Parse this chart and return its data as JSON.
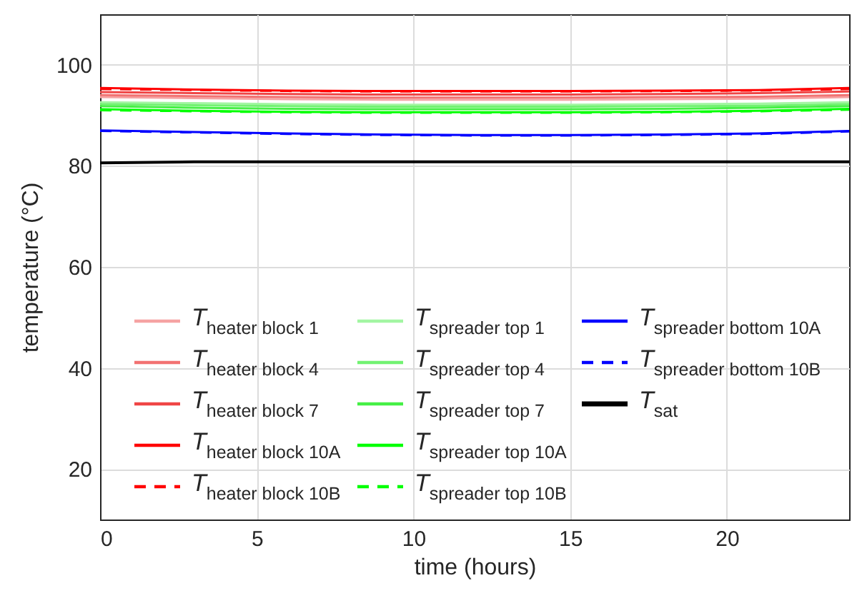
{
  "chart_data": {
    "type": "line",
    "xlabel": "time (hours)",
    "ylabel": "temperature (°C)",
    "xlim": [
      0,
      23.9
    ],
    "ylim": [
      10,
      110
    ],
    "xticks": [
      0,
      5,
      10,
      15,
      20
    ],
    "yticks": [
      20,
      40,
      60,
      80,
      100
    ],
    "grid": true,
    "legend": "bottom left",
    "x": [
      0,
      3,
      6,
      9,
      12,
      15,
      18,
      21,
      23.9
    ],
    "series": [
      {
        "name": "T$_{heater block 1}$",
        "color": "#f5a3a3",
        "line_style": "solid",
        "values": [
          93.6,
          93.4,
          93.2,
          93.1,
          93.1,
          93.1,
          93.2,
          93.3,
          93.6
        ]
      },
      {
        "name": "T$_{heater block 4}$",
        "color": "#f27272",
        "line_style": "solid",
        "values": [
          94.0,
          93.8,
          93.6,
          93.5,
          93.5,
          93.5,
          93.6,
          93.7,
          94.0
        ]
      },
      {
        "name": "T$_{heater block 7}$",
        "color": "#f04545",
        "line_style": "solid",
        "values": [
          94.6,
          94.4,
          94.2,
          94.1,
          94.1,
          94.1,
          94.2,
          94.4,
          94.7
        ]
      },
      {
        "name": "T$_{heater block 10A}$",
        "color": "#ff0000",
        "line_style": "solid",
        "values": [
          95.4,
          95.1,
          94.9,
          94.8,
          94.8,
          94.8,
          94.9,
          95.0,
          95.4
        ]
      },
      {
        "name": "T$_{heater block 10B}$",
        "color": "#ff0000",
        "line_style": "dashed",
        "values": [
          95.2,
          95.0,
          94.8,
          94.7,
          94.7,
          94.7,
          94.8,
          94.9,
          95.2
        ]
      },
      {
        "name": "T$_{spreader top 1}$",
        "color": "#a3f5a3",
        "line_style": "solid",
        "values": [
          92.6,
          92.4,
          92.2,
          92.1,
          92.1,
          92.1,
          92.2,
          92.3,
          92.6
        ]
      },
      {
        "name": "T$_{spreader top 4}$",
        "color": "#72f272",
        "line_style": "solid",
        "values": [
          92.2,
          92.0,
          91.8,
          91.7,
          91.7,
          91.7,
          91.8,
          91.9,
          92.2
        ]
      },
      {
        "name": "T$_{spreader top 7}$",
        "color": "#45f045",
        "line_style": "solid",
        "values": [
          91.8,
          91.5,
          91.3,
          91.2,
          91.2,
          91.2,
          91.3,
          91.5,
          91.8
        ]
      },
      {
        "name": "T$_{spreader top 10A}$",
        "color": "#00ff00",
        "line_style": "solid",
        "values": [
          91.2,
          90.9,
          90.7,
          90.6,
          90.6,
          90.6,
          90.7,
          90.9,
          91.3
        ]
      },
      {
        "name": "T$_{spreader top 10B}$",
        "color": "#00ff00",
        "line_style": "dashed",
        "values": [
          91.0,
          90.8,
          90.6,
          90.5,
          90.5,
          90.5,
          90.6,
          90.8,
          91.1
        ]
      },
      {
        "name": "T$_{spreader bottom 10A}$",
        "color": "#0000ff",
        "line_style": "solid",
        "values": [
          87.0,
          86.7,
          86.4,
          86.2,
          86.1,
          86.1,
          86.2,
          86.4,
          86.9
        ]
      },
      {
        "name": "T$_{spreader bottom 10B}$",
        "color": "#0000ff",
        "line_style": "dashed",
        "values": [
          86.9,
          86.6,
          86.3,
          86.1,
          86.0,
          86.0,
          86.1,
          86.3,
          86.8
        ]
      },
      {
        "name": "T$_{sat}$",
        "color": "#000000",
        "line_style": "solid",
        "values": [
          80.6,
          80.8,
          80.8,
          80.8,
          80.8,
          80.8,
          80.8,
          80.8,
          80.8
        ]
      }
    ]
  }
}
